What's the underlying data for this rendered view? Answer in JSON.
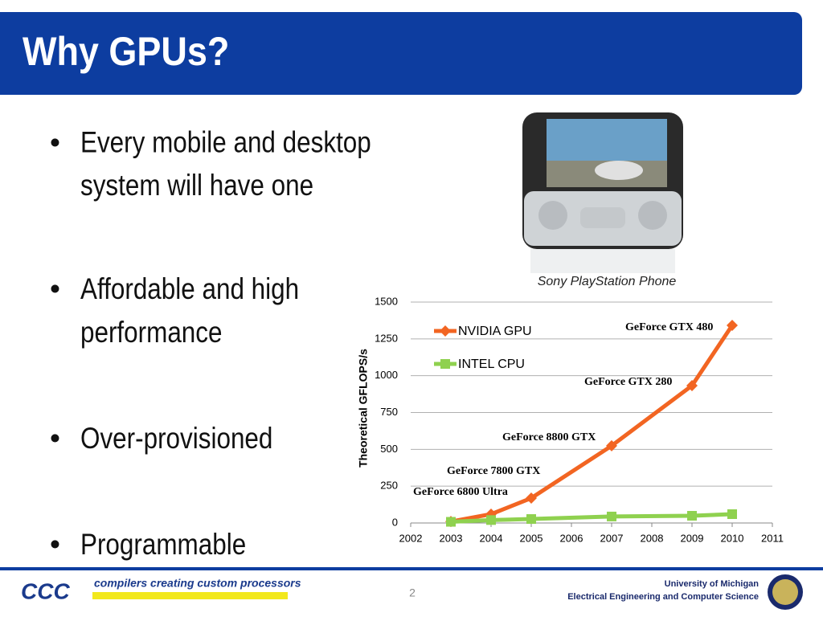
{
  "header": {
    "title": "Why GPUs?"
  },
  "bullets": [
    [
      "Every mobile and desktop",
      "system will have one"
    ],
    [
      "Affordable and high",
      "performance"
    ],
    [
      "Over-provisioned"
    ],
    [
      "Programmable"
    ]
  ],
  "image_caption": "Sony PlayStation Phone",
  "footer": {
    "logo": "CCC",
    "tagline": "compilers creating custom processors",
    "page": "2",
    "university": "University of Michigan",
    "department": "Electrical Engineering and Computer Science"
  },
  "chart_data": {
    "type": "line",
    "y_label": "Theoretical GFLOPS/s",
    "xlim": [
      2002,
      2011
    ],
    "xticks": [
      2002,
      2003,
      2004,
      2005,
      2006,
      2007,
      2008,
      2009,
      2010,
      2011
    ],
    "ylim": [
      0,
      1500
    ],
    "yticks": [
      0,
      250,
      500,
      750,
      1000,
      1250,
      1500
    ],
    "grid": true,
    "x": [
      2003,
      2004,
      2005,
      2007,
      2009,
      2010
    ],
    "series": [
      {
        "name": "NVIDIA GPU",
        "color": "#f26522",
        "marker": "diamond",
        "values": [
          10,
          60,
          169,
          524,
          933,
          1342
        ]
      },
      {
        "name": "INTEL CPU",
        "color": "#8fd14f",
        "marker": "square",
        "values": [
          8,
          20,
          27,
          44,
          49,
          60
        ]
      }
    ],
    "annotations": [
      "GeForce 6800 Ultra",
      "GeForce 7800 GTX",
      "GeForce 8800 GTX",
      "GeForce GTX 280",
      "GeForce GTX 480"
    ]
  }
}
